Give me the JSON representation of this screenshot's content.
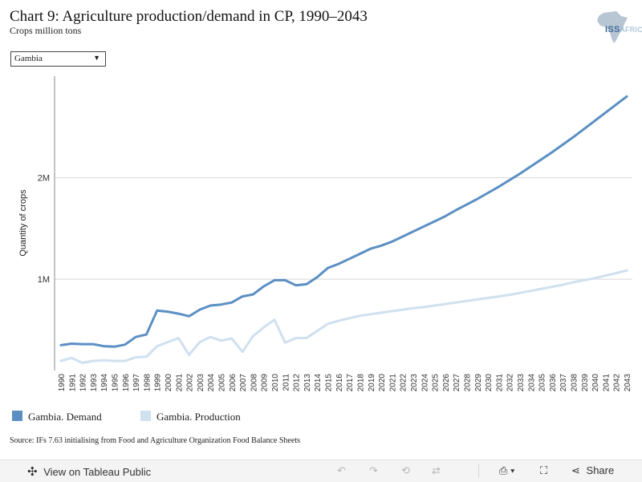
{
  "header": {
    "title": "Chart 9: Agriculture production/demand in CP, 1990–2043",
    "subtitle": "Crops million tons",
    "logo_text": "ISS",
    "logo_suffix": "AFRICA"
  },
  "filter": {
    "selected": "Gambia"
  },
  "source": "Source: IFs 7.63 initialising from Food and Agriculture Organization Food Balance Sheets",
  "toolbar": {
    "view_label": "View on Tableau Public",
    "share_label": "Share"
  },
  "colors": {
    "demand": "#5b8fc3",
    "production": "#cfe0ef",
    "grid": "#d9d9d9",
    "axis": "#888888"
  },
  "chart_data": {
    "type": "line",
    "ylabel": "Quantity of crops",
    "y_ticks": [
      1000000,
      2000000
    ],
    "y_tick_labels": [
      "1M",
      "2M"
    ],
    "ylim": [
      100000,
      3000000
    ],
    "xlim": [
      1990,
      2043
    ],
    "x": [
      1990,
      1991,
      1992,
      1993,
      1994,
      1995,
      1996,
      1997,
      1998,
      1999,
      2000,
      2001,
      2002,
      2003,
      2004,
      2005,
      2006,
      2007,
      2008,
      2009,
      2010,
      2011,
      2012,
      2013,
      2014,
      2015,
      2016,
      2017,
      2018,
      2019,
      2020,
      2021,
      2022,
      2023,
      2024,
      2025,
      2026,
      2027,
      2028,
      2029,
      2030,
      2031,
      2032,
      2033,
      2034,
      2035,
      2036,
      2037,
      2038,
      2039,
      2040,
      2041,
      2042,
      2043
    ],
    "series": [
      {
        "name": "Gambia. Demand",
        "color": "#5b8fc3",
        "values": [
          350000,
          365000,
          360000,
          360000,
          340000,
          335000,
          355000,
          430000,
          455000,
          690000,
          680000,
          660000,
          635000,
          700000,
          740000,
          750000,
          770000,
          830000,
          850000,
          930000,
          990000,
          990000,
          940000,
          950000,
          1020000,
          1110000,
          1150000,
          1200000,
          1250000,
          1300000,
          1330000,
          1370000,
          1420000,
          1470000,
          1520000,
          1570000,
          1620000,
          1680000,
          1735000,
          1790000,
          1850000,
          1910000,
          1975000,
          2040000,
          2110000,
          2180000,
          2250000,
          2325000,
          2400000,
          2480000,
          2560000,
          2640000,
          2720000,
          2800000
        ]
      },
      {
        "name": "Gambia. Production",
        "color": "#cfe0ef",
        "values": [
          195000,
          225000,
          175000,
          195000,
          200000,
          195000,
          195000,
          230000,
          235000,
          340000,
          380000,
          420000,
          255000,
          380000,
          430000,
          395000,
          415000,
          285000,
          440000,
          525000,
          600000,
          375000,
          420000,
          420000,
          490000,
          560000,
          590000,
          615000,
          640000,
          655000,
          670000,
          685000,
          700000,
          715000,
          725000,
          740000,
          755000,
          770000,
          785000,
          800000,
          815000,
          830000,
          845000,
          865000,
          885000,
          905000,
          925000,
          945000,
          970000,
          990000,
          1010000,
          1035000,
          1060000,
          1085000
        ]
      }
    ]
  }
}
